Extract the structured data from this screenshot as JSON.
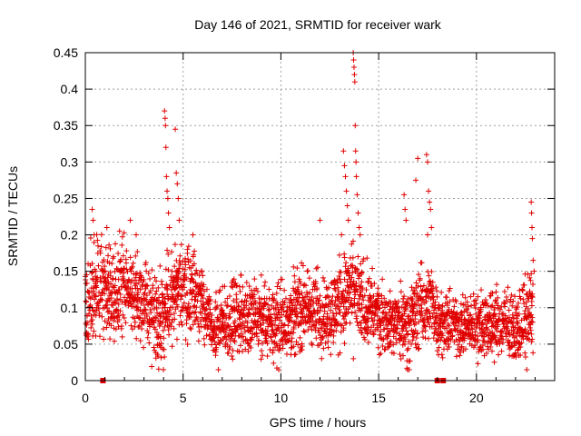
{
  "chart_data": {
    "type": "scatter",
    "title": "Day 146 of 2021, SRMTID for receiver wark",
    "xlabel": "GPS time / hours",
    "ylabel": "SRMTID / TECUs",
    "xlim": [
      0,
      24
    ],
    "ylim": [
      0,
      0.45
    ],
    "x_ticks": [
      0,
      5,
      10,
      15,
      20
    ],
    "x_tick_labels": [
      "0",
      "5",
      "10",
      "15",
      "20"
    ],
    "y_ticks": [
      0,
      0.05,
      0.1,
      0.15,
      0.2,
      0.25,
      0.3,
      0.35,
      0.4,
      0.45
    ],
    "y_tick_labels": [
      "0",
      "0.05",
      "0.1",
      "0.15",
      "0.2",
      "0.25",
      "0.3",
      "0.35",
      "0.4",
      "0.45"
    ],
    "grid": true,
    "marker": "plus",
    "series_color": "#e00000",
    "baseline_markers": [
      0.9,
      18.0,
      18.3
    ],
    "activity_envelope": [
      {
        "t": 0.0,
        "base": 0.12,
        "spread": 0.05
      },
      {
        "t": 0.5,
        "base": 0.13,
        "spread": 0.06
      },
      {
        "t": 1.0,
        "base": 0.12,
        "spread": 0.05
      },
      {
        "t": 2.0,
        "base": 0.13,
        "spread": 0.05
      },
      {
        "t": 3.0,
        "base": 0.1,
        "spread": 0.04
      },
      {
        "t": 4.0,
        "base": 0.09,
        "spread": 0.05
      },
      {
        "t": 5.0,
        "base": 0.13,
        "spread": 0.05
      },
      {
        "t": 5.8,
        "base": 0.12,
        "spread": 0.04
      },
      {
        "t": 6.5,
        "base": 0.065,
        "spread": 0.03
      },
      {
        "t": 8.0,
        "base": 0.09,
        "spread": 0.04
      },
      {
        "t": 9.0,
        "base": 0.08,
        "spread": 0.04
      },
      {
        "t": 10.0,
        "base": 0.08,
        "spread": 0.04
      },
      {
        "t": 11.0,
        "base": 0.1,
        "spread": 0.04
      },
      {
        "t": 12.5,
        "base": 0.09,
        "spread": 0.04
      },
      {
        "t": 13.5,
        "base": 0.12,
        "spread": 0.05
      },
      {
        "t": 14.5,
        "base": 0.1,
        "spread": 0.04
      },
      {
        "t": 15.5,
        "base": 0.08,
        "spread": 0.03
      },
      {
        "t": 16.5,
        "base": 0.08,
        "spread": 0.04
      },
      {
        "t": 17.5,
        "base": 0.11,
        "spread": 0.04
      },
      {
        "t": 18.2,
        "base": 0.08,
        "spread": 0.03
      },
      {
        "t": 19.5,
        "base": 0.075,
        "spread": 0.03
      },
      {
        "t": 21.0,
        "base": 0.08,
        "spread": 0.035
      },
      {
        "t": 22.0,
        "base": 0.07,
        "spread": 0.03
      },
      {
        "t": 22.9,
        "base": 0.1,
        "spread": 0.05
      }
    ],
    "notable_points": [
      {
        "x": 0.35,
        "y": 0.235
      },
      {
        "x": 0.4,
        "y": 0.22
      },
      {
        "x": 0.45,
        "y": 0.2
      },
      {
        "x": 1.1,
        "y": 0.21
      },
      {
        "x": 2.3,
        "y": 0.22
      },
      {
        "x": 2.6,
        "y": 0.2
      },
      {
        "x": 4.05,
        "y": 0.37
      },
      {
        "x": 4.08,
        "y": 0.36
      },
      {
        "x": 4.1,
        "y": 0.35
      },
      {
        "x": 4.12,
        "y": 0.32
      },
      {
        "x": 4.15,
        "y": 0.28
      },
      {
        "x": 4.18,
        "y": 0.26
      },
      {
        "x": 4.22,
        "y": 0.25
      },
      {
        "x": 4.25,
        "y": 0.23
      },
      {
        "x": 4.3,
        "y": 0.21
      },
      {
        "x": 4.6,
        "y": 0.345
      },
      {
        "x": 4.65,
        "y": 0.285
      },
      {
        "x": 4.7,
        "y": 0.27
      },
      {
        "x": 4.75,
        "y": 0.25
      },
      {
        "x": 4.8,
        "y": 0.22
      },
      {
        "x": 5.5,
        "y": 0.2
      },
      {
        "x": 12.0,
        "y": 0.22
      },
      {
        "x": 13.2,
        "y": 0.315
      },
      {
        "x": 13.25,
        "y": 0.295
      },
      {
        "x": 13.3,
        "y": 0.28
      },
      {
        "x": 13.35,
        "y": 0.26
      },
      {
        "x": 13.4,
        "y": 0.24
      },
      {
        "x": 13.45,
        "y": 0.22
      },
      {
        "x": 13.1,
        "y": 0.2
      },
      {
        "x": 13.7,
        "y": 0.45
      },
      {
        "x": 13.72,
        "y": 0.44
      },
      {
        "x": 13.74,
        "y": 0.43
      },
      {
        "x": 13.76,
        "y": 0.42
      },
      {
        "x": 13.78,
        "y": 0.41
      },
      {
        "x": 13.8,
        "y": 0.35
      },
      {
        "x": 13.82,
        "y": 0.315
      },
      {
        "x": 13.84,
        "y": 0.3
      },
      {
        "x": 13.86,
        "y": 0.28
      },
      {
        "x": 13.9,
        "y": 0.255
      },
      {
        "x": 13.95,
        "y": 0.23
      },
      {
        "x": 14.0,
        "y": 0.21
      },
      {
        "x": 14.05,
        "y": 0.2
      },
      {
        "x": 16.3,
        "y": 0.255
      },
      {
        "x": 16.35,
        "y": 0.235
      },
      {
        "x": 16.4,
        "y": 0.22
      },
      {
        "x": 17.0,
        "y": 0.305
      },
      {
        "x": 16.9,
        "y": 0.275
      },
      {
        "x": 17.45,
        "y": 0.31
      },
      {
        "x": 17.5,
        "y": 0.3
      },
      {
        "x": 17.55,
        "y": 0.26
      },
      {
        "x": 17.6,
        "y": 0.245
      },
      {
        "x": 17.65,
        "y": 0.235
      },
      {
        "x": 17.7,
        "y": 0.21
      },
      {
        "x": 17.5,
        "y": 0.2
      },
      {
        "x": 22.8,
        "y": 0.245
      },
      {
        "x": 22.82,
        "y": 0.23
      },
      {
        "x": 22.84,
        "y": 0.21
      },
      {
        "x": 22.86,
        "y": 0.195
      },
      {
        "x": 22.9,
        "y": 0.165
      },
      {
        "x": 22.95,
        "y": 0.15
      }
    ]
  }
}
